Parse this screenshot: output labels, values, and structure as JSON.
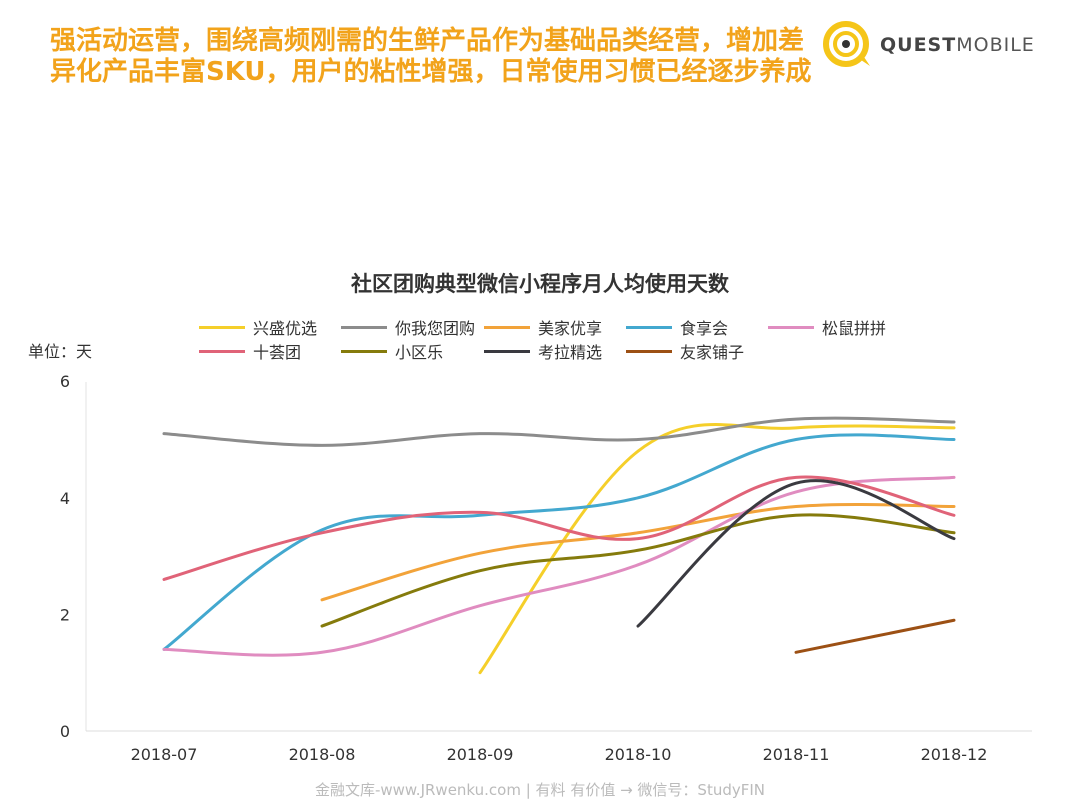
{
  "headline": "强活动运营，围绕高频刚需的生鲜产品作为基础品类经营，增加差异化产品丰富SKU，用户的粘性增强，日常使用习惯已经逐步养成",
  "logo": {
    "bold": "QUEST",
    "light": "MOBILE"
  },
  "unit_label": "单位：天",
  "footer": "金融文库-www.JRwenku.com | 有料 有价值 → 微信号：StudyFIN",
  "chart_data": {
    "type": "line",
    "title": "社区团购典型微信小程序月人均使用天数",
    "categories": [
      "2018-07",
      "2018-08",
      "2018-09",
      "2018-10",
      "2018-11",
      "2018-12"
    ],
    "ylim": [
      0,
      6
    ],
    "yticks": [
      0,
      2,
      4,
      6
    ],
    "grid": false,
    "legend_position": "top",
    "series": [
      {
        "name": "兴盛优选",
        "color": "#f5cf2a",
        "values": [
          null,
          null,
          1.0,
          4.8,
          5.2,
          5.2
        ]
      },
      {
        "name": "你我您团购",
        "color": "#8c8c8c",
        "values": [
          5.1,
          4.9,
          5.1,
          5.0,
          5.35,
          5.3
        ]
      },
      {
        "name": "美家优享",
        "color": "#f2a33a",
        "values": [
          null,
          2.25,
          3.05,
          3.4,
          3.85,
          3.85
        ]
      },
      {
        "name": "食享会",
        "color": "#43a8cf",
        "values": [
          1.4,
          3.45,
          3.7,
          4.0,
          5.0,
          5.0
        ]
      },
      {
        "name": "松鼠拼拼",
        "color": "#e08cc0",
        "values": [
          1.4,
          1.35,
          2.15,
          2.85,
          4.1,
          4.35
        ]
      },
      {
        "name": "十荟团",
        "color": "#e06378",
        "values": [
          2.6,
          3.4,
          3.75,
          3.3,
          4.35,
          3.7
        ]
      },
      {
        "name": "小区乐",
        "color": "#857b0c",
        "values": [
          null,
          1.8,
          2.75,
          3.1,
          3.7,
          3.4
        ]
      },
      {
        "name": "考拉精选",
        "color": "#3a3a40",
        "values": [
          null,
          null,
          null,
          1.8,
          4.25,
          3.3
        ]
      },
      {
        "name": "友家铺子",
        "color": "#9c5014",
        "values": [
          null,
          null,
          null,
          null,
          1.35,
          1.9
        ]
      }
    ]
  }
}
